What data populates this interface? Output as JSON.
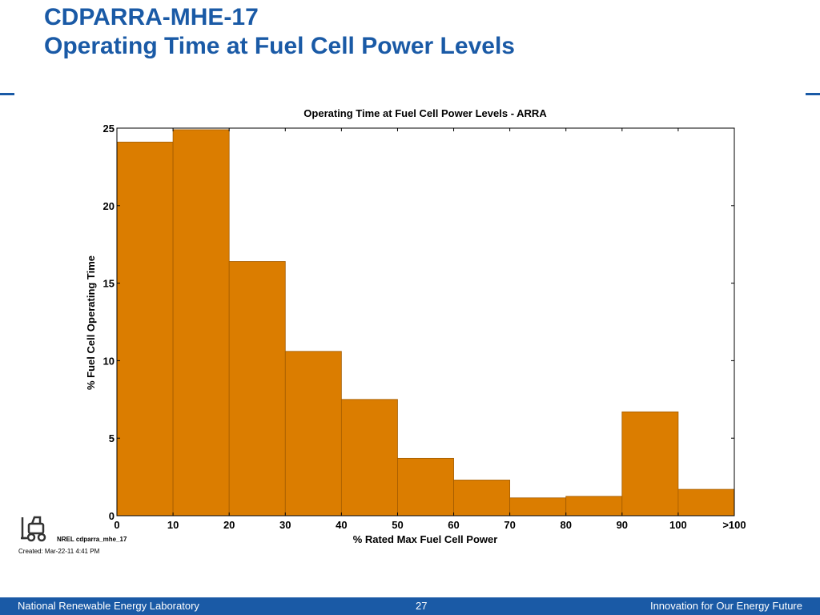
{
  "slide": {
    "title_line1": "CDPARRA-MHE-17",
    "title_line2": "Operating Time at Fuel Cell Power Levels",
    "accent_color": "#1a5aa6"
  },
  "chart_data": {
    "type": "bar",
    "title": "Operating Time at Fuel Cell Power Levels - ARRA",
    "xlabel": "% Rated Max Fuel Cell Power",
    "ylabel": "% Fuel Cell Operating Time",
    "x_tick_labels": [
      "0",
      "10",
      "20",
      "30",
      "40",
      "50",
      "60",
      "70",
      "80",
      "90",
      "100",
      ">100"
    ],
    "bins": [
      "0-10",
      "10-20",
      "20-30",
      "30-40",
      "40-50",
      "50-60",
      "60-70",
      "70-80",
      "80-90",
      "90-100",
      ">100"
    ],
    "values": [
      24.1,
      24.9,
      16.4,
      10.6,
      7.5,
      3.7,
      2.3,
      1.15,
      1.25,
      6.7,
      1.7
    ],
    "ylim": [
      0,
      25
    ],
    "yticks": [
      0,
      5,
      10,
      15,
      20,
      25
    ],
    "bar_color": "#db7d00",
    "bar_edge_color": "#a35c00",
    "grid": false
  },
  "annotations": {
    "figure_id": "NREL cdparra_mhe_17",
    "created": "Created: Mar-22-11  4:41 PM",
    "logo_icon": "forklift-icon"
  },
  "footer": {
    "organization": "National Renewable Energy Laboratory",
    "page_number": "27",
    "tagline": "Innovation for Our Energy Future"
  }
}
